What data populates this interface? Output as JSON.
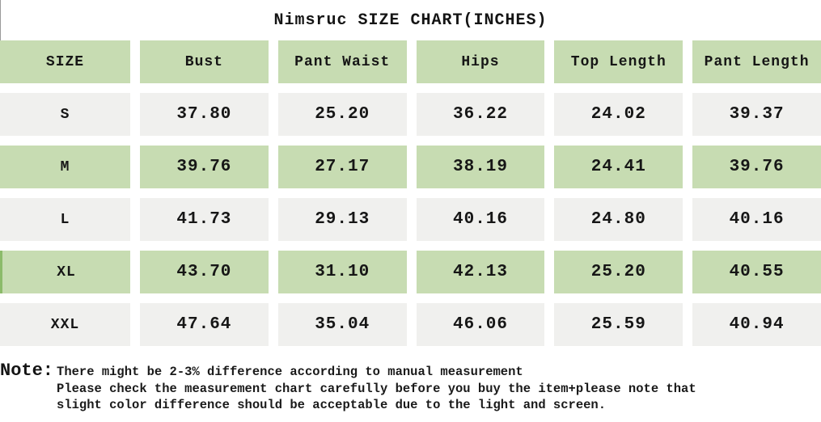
{
  "title": "Nimsruc SIZE CHART(INCHES)",
  "table": {
    "columns": [
      "SIZE",
      "Bust",
      "Pant Waist",
      "Hips",
      "Top Length",
      "Pant Length"
    ],
    "rows": [
      {
        "size": "S",
        "values": [
          "37.80",
          "25.20",
          "36.22",
          "24.02",
          "39.37"
        ]
      },
      {
        "size": "M",
        "values": [
          "39.76",
          "27.17",
          "38.19",
          "24.41",
          "39.76"
        ]
      },
      {
        "size": "L",
        "values": [
          "41.73",
          "29.13",
          "40.16",
          "24.80",
          "40.16"
        ]
      },
      {
        "size": "XL",
        "values": [
          "43.70",
          "31.10",
          "42.13",
          "25.20",
          "40.55"
        ]
      },
      {
        "size": "XXL",
        "values": [
          "47.64",
          "35.04",
          "46.06",
          "25.59",
          "40.94"
        ]
      }
    ]
  },
  "note": {
    "label": "Note:",
    "lines": [
      "There might be 2-3% difference according to manual measurement",
      "Please check the measurement chart carefully before you buy the item+please note that",
      "slight color difference should be acceptable due to the light and screen."
    ]
  },
  "colors": {
    "row_green": "#c7dcb2",
    "row_gray": "#f0f0ee",
    "accent_strip_green": "#8cbb6a",
    "text": "#141414"
  },
  "chart_data": {
    "type": "table",
    "title": "Nimsruc SIZE CHART(INCHES)",
    "units": "inches",
    "columns": [
      "SIZE",
      "Bust",
      "Pant Waist",
      "Hips",
      "Top Length",
      "Pant Length"
    ],
    "rows": [
      [
        "S",
        37.8,
        25.2,
        36.22,
        24.02,
        39.37
      ],
      [
        "M",
        39.76,
        27.17,
        38.19,
        24.41,
        39.76
      ],
      [
        "L",
        41.73,
        29.13,
        40.16,
        24.8,
        40.16
      ],
      [
        "XL",
        43.7,
        31.1,
        42.13,
        25.2,
        40.55
      ],
      [
        "XXL",
        47.64,
        35.04,
        46.06,
        25.59,
        40.94
      ]
    ]
  }
}
